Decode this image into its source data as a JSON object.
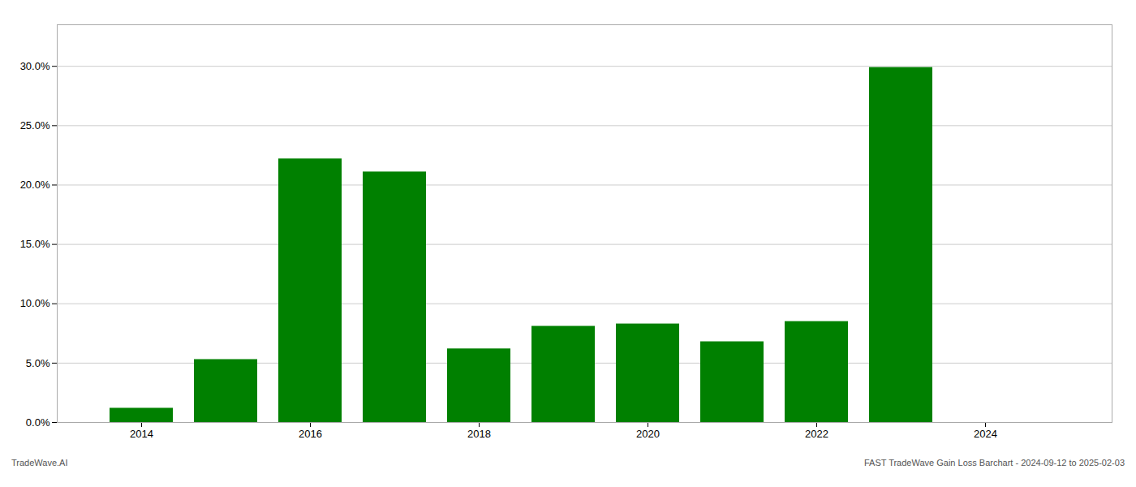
{
  "chart_data": {
    "type": "bar",
    "x": [
      2014,
      2015,
      2016,
      2017,
      2018,
      2019,
      2020,
      2021,
      2022,
      2023
    ],
    "values": [
      0.012,
      0.053,
      0.222,
      0.211,
      0.062,
      0.081,
      0.083,
      0.068,
      0.085,
      0.299
    ],
    "color": "#008000",
    "xlim": [
      2013.0,
      2025.5
    ],
    "xticks": [
      2014,
      2016,
      2018,
      2020,
      2022,
      2024
    ],
    "ylim": [
      0,
      0.335
    ],
    "yticks": [
      {
        "value": 0.0,
        "label": "0.0%"
      },
      {
        "value": 0.05,
        "label": "5.0%"
      },
      {
        "value": 0.1,
        "label": "10.0%"
      },
      {
        "value": 0.15,
        "label": "15.0%"
      },
      {
        "value": 0.2,
        "label": "20.0%"
      },
      {
        "value": 0.25,
        "label": "25.0%"
      },
      {
        "value": 0.3,
        "label": "30.0%"
      }
    ],
    "grid": true,
    "annotations": [
      "TradeWave.AI",
      "FAST TradeWave Gain Loss Barchart - 2024-09-12 to 2025-02-03"
    ]
  }
}
